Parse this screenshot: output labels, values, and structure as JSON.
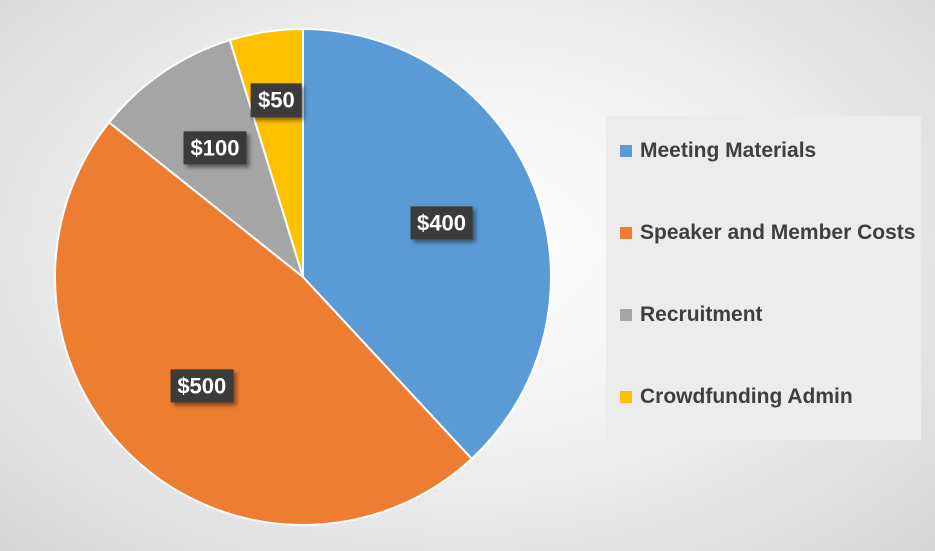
{
  "chart_data": {
    "type": "pie",
    "title": "",
    "slices": [
      {
        "label": "Meeting Materials",
        "value": 400,
        "display": "$400",
        "color": "#5b9bd5"
      },
      {
        "label": "Speaker and Member Costs",
        "value": 500,
        "display": "$500",
        "color": "#ed7d31"
      },
      {
        "label": "Recruitment",
        "value": 100,
        "display": "$100",
        "color": "#a5a5a5"
      },
      {
        "label": "Crowdfunding Admin",
        "value": 50,
        "display": "$50",
        "color": "#ffc000"
      }
    ],
    "start_angle": "12 o'clock",
    "direction": "clockwise",
    "legend_position": "right",
    "data_label_style": "dark callout boxes"
  }
}
